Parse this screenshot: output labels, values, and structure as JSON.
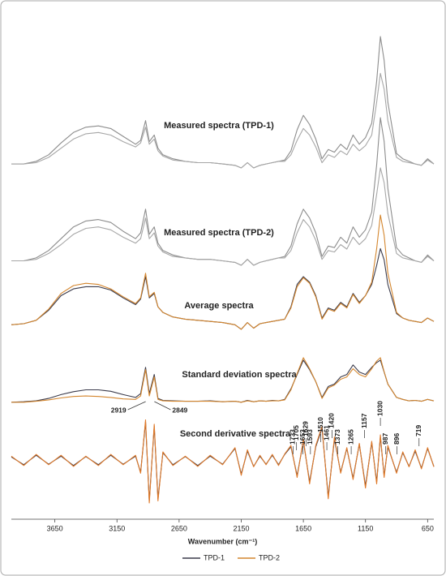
{
  "chart_data": [
    {
      "type": "line",
      "title": "Measured spectra (TPD-1)",
      "xlim": [
        4000,
        600
      ],
      "ylim": [
        0,
        1
      ],
      "x": [
        4000,
        3900,
        3800,
        3700,
        3600,
        3500,
        3400,
        3300,
        3200,
        3100,
        3000,
        2960,
        2920,
        2890,
        2850,
        2820,
        2780,
        2700,
        2600,
        2500,
        2400,
        2300,
        2200,
        2150,
        2100,
        2050,
        2000,
        1950,
        1900,
        1850,
        1800,
        1750,
        1700,
        1650,
        1600,
        1550,
        1500,
        1450,
        1400,
        1350,
        1300,
        1250,
        1200,
        1150,
        1100,
        1060,
        1030,
        1000,
        970,
        900,
        850,
        800,
        750,
        700,
        650,
        600
      ],
      "series": [
        {
          "color": "#8c8c8c",
          "values": [
            0.03,
            0.03,
            0.05,
            0.1,
            0.19,
            0.27,
            0.31,
            0.32,
            0.3,
            0.24,
            0.18,
            0.21,
            0.36,
            0.2,
            0.25,
            0.15,
            0.1,
            0.07,
            0.05,
            0.04,
            0.04,
            0.03,
            0.02,
            0.0,
            0.04,
            0.0,
            0.02,
            0.03,
            0.04,
            0.05,
            0.06,
            0.13,
            0.29,
            0.4,
            0.33,
            0.22,
            0.07,
            0.14,
            0.12,
            0.18,
            0.14,
            0.25,
            0.18,
            0.23,
            0.34,
            0.66,
            1.0,
            0.82,
            0.5,
            0.11,
            0.07,
            0.05,
            0.03,
            0.02,
            0.07,
            0.03
          ]
        },
        {
          "color": "#a6a6a6",
          "values": [
            0.03,
            0.03,
            0.04,
            0.08,
            0.15,
            0.22,
            0.26,
            0.27,
            0.25,
            0.2,
            0.16,
            0.19,
            0.31,
            0.18,
            0.22,
            0.13,
            0.09,
            0.06,
            0.05,
            0.04,
            0.04,
            0.03,
            0.02,
            0.0,
            0.04,
            0.0,
            0.02,
            0.03,
            0.04,
            0.05,
            0.05,
            0.1,
            0.21,
            0.3,
            0.25,
            0.16,
            0.04,
            0.1,
            0.08,
            0.13,
            0.1,
            0.18,
            0.13,
            0.17,
            0.25,
            0.5,
            0.72,
            0.6,
            0.36,
            0.08,
            0.05,
            0.04,
            0.03,
            0.02,
            0.06,
            0.03
          ]
        }
      ]
    },
    {
      "type": "line",
      "title": "Measured spectra (TPD-2)",
      "xlim": [
        4000,
        600
      ],
      "ylim": [
        0,
        1
      ],
      "x": [
        4000,
        3900,
        3800,
        3700,
        3600,
        3500,
        3400,
        3300,
        3200,
        3100,
        3000,
        2960,
        2920,
        2890,
        2850,
        2820,
        2780,
        2700,
        2600,
        2500,
        2400,
        2300,
        2200,
        2150,
        2100,
        2050,
        2000,
        1950,
        1900,
        1850,
        1800,
        1750,
        1700,
        1650,
        1600,
        1550,
        1500,
        1450,
        1400,
        1350,
        1300,
        1250,
        1200,
        1150,
        1100,
        1060,
        1030,
        1000,
        970,
        900,
        850,
        800,
        750,
        700,
        650,
        600
      ],
      "series": [
        {
          "color": "#8c8c8c",
          "values": [
            0.03,
            0.03,
            0.05,
            0.1,
            0.18,
            0.26,
            0.3,
            0.31,
            0.29,
            0.23,
            0.18,
            0.22,
            0.38,
            0.21,
            0.26,
            0.15,
            0.1,
            0.07,
            0.05,
            0.04,
            0.04,
            0.03,
            0.02,
            0.0,
            0.04,
            0.0,
            0.02,
            0.03,
            0.04,
            0.05,
            0.06,
            0.13,
            0.28,
            0.38,
            0.32,
            0.22,
            0.06,
            0.13,
            0.12,
            0.19,
            0.15,
            0.26,
            0.19,
            0.24,
            0.36,
            0.68,
            1.0,
            0.84,
            0.52,
            0.12,
            0.07,
            0.05,
            0.03,
            0.02,
            0.07,
            0.03
          ]
        },
        {
          "color": "#a6a6a6",
          "values": [
            0.03,
            0.03,
            0.04,
            0.08,
            0.14,
            0.21,
            0.25,
            0.26,
            0.24,
            0.19,
            0.15,
            0.18,
            0.32,
            0.18,
            0.22,
            0.13,
            0.09,
            0.06,
            0.05,
            0.04,
            0.04,
            0.03,
            0.02,
            0.0,
            0.04,
            0.0,
            0.02,
            0.03,
            0.04,
            0.05,
            0.05,
            0.1,
            0.22,
            0.31,
            0.26,
            0.17,
            0.04,
            0.1,
            0.09,
            0.14,
            0.11,
            0.19,
            0.14,
            0.18,
            0.27,
            0.48,
            0.66,
            0.56,
            0.35,
            0.08,
            0.05,
            0.04,
            0.03,
            0.02,
            0.06,
            0.03
          ]
        }
      ]
    },
    {
      "type": "line",
      "title": "Average spectra",
      "xlim": [
        4000,
        600
      ],
      "ylim": [
        -0.05,
        1
      ],
      "x": [
        4000,
        3900,
        3800,
        3700,
        3600,
        3500,
        3400,
        3300,
        3200,
        3100,
        3000,
        2960,
        2920,
        2890,
        2850,
        2820,
        2780,
        2700,
        2600,
        2500,
        2400,
        2300,
        2200,
        2150,
        2100,
        2050,
        2000,
        1950,
        1900,
        1850,
        1800,
        1750,
        1700,
        1650,
        1600,
        1550,
        1500,
        1450,
        1400,
        1350,
        1300,
        1250,
        1200,
        1150,
        1100,
        1060,
        1030,
        1000,
        970,
        900,
        850,
        800,
        750,
        700,
        650,
        600
      ],
      "series": [
        {
          "name": "TPD-1",
          "color": "#3a3a4a",
          "values": [
            0.02,
            0.03,
            0.06,
            0.15,
            0.28,
            0.34,
            0.36,
            0.36,
            0.33,
            0.26,
            0.2,
            0.25,
            0.45,
            0.26,
            0.3,
            0.18,
            0.13,
            0.09,
            0.07,
            0.06,
            0.05,
            0.04,
            0.02,
            -0.02,
            0.04,
            -0.01,
            0.03,
            0.04,
            0.05,
            0.06,
            0.07,
            0.18,
            0.38,
            0.45,
            0.4,
            0.28,
            0.08,
            0.17,
            0.15,
            0.22,
            0.18,
            0.3,
            0.22,
            0.28,
            0.38,
            0.55,
            0.7,
            0.6,
            0.38,
            0.12,
            0.08,
            0.06,
            0.05,
            0.04,
            0.08,
            0.05
          ]
        },
        {
          "name": "TPD-2",
          "color": "#d4862e",
          "values": [
            0.02,
            0.03,
            0.06,
            0.16,
            0.3,
            0.37,
            0.39,
            0.38,
            0.34,
            0.27,
            0.21,
            0.26,
            0.48,
            0.27,
            0.31,
            0.18,
            0.13,
            0.09,
            0.07,
            0.06,
            0.05,
            0.04,
            0.02,
            -0.02,
            0.04,
            -0.01,
            0.03,
            0.04,
            0.05,
            0.06,
            0.07,
            0.17,
            0.36,
            0.44,
            0.39,
            0.27,
            0.07,
            0.16,
            0.14,
            0.21,
            0.17,
            0.29,
            0.21,
            0.28,
            0.4,
            0.7,
            1.0,
            0.82,
            0.48,
            0.13,
            0.08,
            0.06,
            0.05,
            0.04,
            0.08,
            0.05
          ]
        }
      ]
    },
    {
      "type": "line",
      "title": "Standard deviation spectra",
      "xlim": [
        4000,
        600
      ],
      "ylim": [
        0,
        1
      ],
      "peak_labels": [
        2919,
        2849
      ],
      "x": [
        4000,
        3900,
        3800,
        3700,
        3600,
        3500,
        3400,
        3300,
        3200,
        3100,
        3000,
        2960,
        2920,
        2890,
        2850,
        2820,
        2780,
        2700,
        2600,
        2500,
        2400,
        2300,
        2200,
        2150,
        2100,
        2050,
        2000,
        1950,
        1900,
        1850,
        1800,
        1750,
        1700,
        1650,
        1600,
        1550,
        1500,
        1450,
        1400,
        1350,
        1300,
        1250,
        1200,
        1150,
        1100,
        1060,
        1030,
        1000,
        970,
        900,
        850,
        800,
        750,
        700,
        650,
        600
      ],
      "series": [
        {
          "color": "#3a3a4a",
          "values": [
            0.02,
            0.03,
            0.05,
            0.1,
            0.18,
            0.24,
            0.28,
            0.28,
            0.25,
            0.18,
            0.12,
            0.2,
            0.75,
            0.2,
            0.6,
            0.1,
            0.06,
            0.05,
            0.04,
            0.04,
            0.05,
            0.03,
            0.04,
            0.02,
            0.06,
            0.03,
            0.05,
            0.04,
            0.06,
            0.05,
            0.08,
            0.3,
            0.6,
            0.9,
            0.7,
            0.45,
            0.12,
            0.35,
            0.4,
            0.55,
            0.6,
            0.8,
            0.65,
            0.6,
            0.75,
            0.85,
            0.9,
            0.65,
            0.4,
            0.12,
            0.08,
            0.05,
            0.06,
            0.04,
            0.08,
            0.05
          ]
        },
        {
          "color": "#d4862e",
          "values": [
            0.02,
            0.02,
            0.04,
            0.07,
            0.11,
            0.14,
            0.15,
            0.14,
            0.12,
            0.09,
            0.08,
            0.15,
            0.7,
            0.15,
            0.55,
            0.08,
            0.05,
            0.04,
            0.04,
            0.04,
            0.04,
            0.03,
            0.04,
            0.02,
            0.05,
            0.03,
            0.05,
            0.04,
            0.05,
            0.05,
            0.07,
            0.28,
            0.62,
            0.95,
            0.72,
            0.45,
            0.1,
            0.32,
            0.38,
            0.5,
            0.55,
            0.72,
            0.6,
            0.55,
            0.72,
            0.88,
            0.95,
            0.66,
            0.4,
            0.12,
            0.08,
            0.05,
            0.06,
            0.04,
            0.08,
            0.05
          ]
        }
      ]
    },
    {
      "type": "line",
      "title": "Second derivative spectra",
      "xlim": [
        4000,
        600
      ],
      "ylim": [
        -1,
        1
      ],
      "xticks": [
        3650,
        3150,
        2650,
        2150,
        1650,
        1150,
        650
      ],
      "xlabel": "Wavenumber (cm⁻¹)",
      "peak_labels": [
        1733,
        1705,
        1653,
        1629,
        1593,
        1510,
        1461,
        1420,
        1373,
        1265,
        1157,
        1030,
        987,
        896,
        719
      ],
      "x": [
        4000,
        3900,
        3800,
        3700,
        3600,
        3500,
        3400,
        3300,
        3200,
        3100,
        3000,
        2960,
        2920,
        2890,
        2850,
        2820,
        2780,
        2700,
        2600,
        2500,
        2400,
        2300,
        2200,
        2150,
        2100,
        2050,
        2000,
        1950,
        1900,
        1850,
        1800,
        1750,
        1700,
        1650,
        1600,
        1550,
        1500,
        1450,
        1400,
        1350,
        1300,
        1250,
        1200,
        1150,
        1100,
        1060,
        1030,
        1000,
        970,
        900,
        850,
        800,
        750,
        700,
        650,
        600
      ],
      "series": [
        {
          "color": "#3a3a4a",
          "values": [
            0.08,
            -0.1,
            0.12,
            -0.09,
            0.1,
            -0.12,
            0.09,
            -0.1,
            0.12,
            -0.09,
            0.1,
            -0.28,
            0.9,
            -0.95,
            0.8,
            -0.9,
            0.18,
            -0.1,
            0.09,
            -0.12,
            0.1,
            -0.09,
            0.28,
            -0.32,
            0.22,
            -0.14,
            0.1,
            -0.09,
            0.12,
            -0.1,
            0.14,
            0.32,
            -0.36,
            0.45,
            -0.5,
            0.32,
            0.75,
            -0.85,
            0.5,
            -0.28,
            0.28,
            -0.42,
            0.38,
            -0.6,
            0.42,
            -0.5,
            0.55,
            -0.36,
            0.32,
            -0.28,
            0.18,
            -0.14,
            0.22,
            -0.18,
            0.28,
            -0.14
          ]
        },
        {
          "color": "#e07a2a",
          "values": [
            0.1,
            -0.12,
            0.14,
            -0.1,
            0.12,
            -0.14,
            0.1,
            -0.12,
            0.14,
            -0.1,
            0.12,
            -0.3,
            0.95,
            -1.0,
            0.85,
            -0.95,
            0.2,
            -0.12,
            0.1,
            -0.14,
            0.12,
            -0.1,
            0.3,
            -0.35,
            0.25,
            -0.15,
            0.12,
            -0.1,
            0.14,
            -0.12,
            0.15,
            0.35,
            -0.4,
            0.5,
            -0.55,
            0.35,
            0.8,
            -0.9,
            0.55,
            -0.3,
            0.3,
            -0.45,
            0.4,
            -0.65,
            0.45,
            -0.55,
            0.6,
            -0.4,
            0.35,
            -0.3,
            0.2,
            -0.15,
            0.25,
            -0.2,
            0.3,
            -0.15
          ]
        }
      ]
    }
  ]
}
